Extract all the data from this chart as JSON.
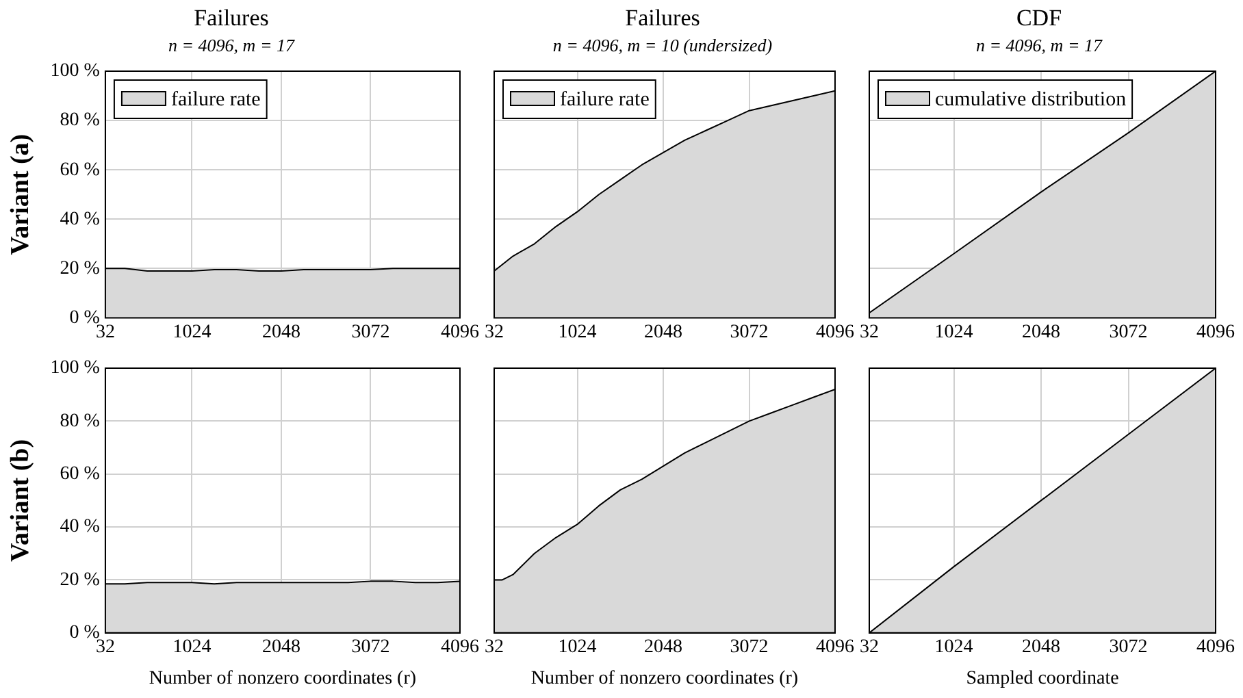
{
  "chart_data": [
    {
      "type": "area",
      "title": "Failures",
      "subtitle": "n = 4096, m = 17",
      "ylabel": "Variant (a)",
      "legend": "top left",
      "grid": true,
      "xlim": [
        32,
        4096
      ],
      "xticks": [
        32,
        1024,
        2048,
        3072,
        4096
      ],
      "ylim": [
        0,
        100
      ],
      "yticks": [
        {
          "value": 0,
          "label": "0 %"
        },
        {
          "value": 20,
          "label": "20 %"
        },
        {
          "value": 40,
          "label": "40 %"
        },
        {
          "value": 60,
          "label": "60 %"
        },
        {
          "value": 80,
          "label": "80 %"
        },
        {
          "value": 100,
          "label": "100 %"
        }
      ],
      "series": [
        {
          "name": "failure rate",
          "color": "#d9d9d9",
          "x": [
            32,
            256,
            512,
            768,
            1024,
            1280,
            1536,
            1792,
            2048,
            2304,
            2560,
            2816,
            3072,
            3328,
            3584,
            3840,
            4096
          ],
          "values": [
            20,
            20,
            19,
            19,
            19,
            19.5,
            19.5,
            19,
            19,
            19.5,
            19.5,
            19.5,
            19.5,
            20,
            20,
            20,
            20
          ]
        }
      ]
    },
    {
      "type": "area",
      "title": "Failures",
      "subtitle": "n = 4096, m = 10 (undersized)",
      "legend": "top left",
      "grid": true,
      "tick_labels": "x",
      "xlim": [
        32,
        4096
      ],
      "xticks": [
        32,
        1024,
        2048,
        3072,
        4096
      ],
      "ylim": [
        0,
        100
      ],
      "yticks": [
        0,
        20,
        40,
        60,
        80,
        100
      ],
      "series": [
        {
          "name": "failure rate",
          "color": "#d9d9d9",
          "x": [
            32,
            256,
            512,
            768,
            1024,
            1280,
            1536,
            1792,
            2048,
            2304,
            2560,
            2816,
            3072,
            3328,
            3584,
            3840,
            4096
          ],
          "values": [
            19,
            25,
            30,
            37,
            43,
            50,
            56,
            62,
            67,
            72,
            76,
            80,
            84,
            86,
            88,
            90,
            92
          ]
        }
      ]
    },
    {
      "type": "area",
      "title": "CDF",
      "subtitle": "n = 4096, m = 17",
      "legend": "top left",
      "grid": true,
      "tick_labels": "x",
      "xlim": [
        32,
        4096
      ],
      "xticks": [
        32,
        1024,
        2048,
        3072,
        4096
      ],
      "ylim": [
        0,
        100
      ],
      "yticks": [
        0,
        20,
        40,
        60,
        80,
        100
      ],
      "series": [
        {
          "name": "cumulative distribution",
          "color": "#d9d9d9",
          "x": [
            32,
            1024,
            2048,
            3072,
            4096
          ],
          "values": [
            2,
            26,
            51,
            75,
            100
          ]
        }
      ]
    },
    {
      "type": "area",
      "ylabel": "Variant (b)",
      "xlabel": "Number of nonzero coordinates (r)",
      "grid": true,
      "xlim": [
        32,
        4096
      ],
      "xticks": [
        32,
        1024,
        2048,
        3072,
        4096
      ],
      "ylim": [
        0,
        100
      ],
      "yticks": [
        {
          "value": 0,
          "label": "0 %"
        },
        {
          "value": 20,
          "label": "20 %"
        },
        {
          "value": 40,
          "label": "40 %"
        },
        {
          "value": 60,
          "label": "60 %"
        },
        {
          "value": 80,
          "label": "80 %"
        },
        {
          "value": 100,
          "label": "100 %"
        }
      ],
      "series": [
        {
          "color": "#d9d9d9",
          "x": [
            32,
            256,
            512,
            768,
            1024,
            1280,
            1536,
            1792,
            2048,
            2304,
            2560,
            2816,
            3072,
            3328,
            3584,
            3840,
            4096
          ],
          "values": [
            18.5,
            18.5,
            19,
            19,
            19,
            18.5,
            19,
            19,
            19,
            19,
            19,
            19,
            19.5,
            19.5,
            19,
            19,
            19.5
          ]
        }
      ]
    },
    {
      "type": "area",
      "xlabel": "Number of nonzero coordinates (r)",
      "grid": true,
      "tick_labels": "x",
      "xlim": [
        32,
        4096
      ],
      "xticks": [
        32,
        1024,
        2048,
        3072,
        4096
      ],
      "ylim": [
        0,
        100
      ],
      "yticks": [
        0,
        20,
        40,
        60,
        80,
        100
      ],
      "series": [
        {
          "color": "#d9d9d9",
          "x": [
            32,
            128,
            256,
            512,
            768,
            1024,
            1280,
            1536,
            1792,
            2048,
            2304,
            2560,
            2816,
            3072,
            3328,
            3584,
            3840,
            4096
          ],
          "values": [
            20,
            20,
            22,
            30,
            36,
            41,
            48,
            54,
            58,
            63,
            68,
            72,
            76,
            80,
            83,
            86,
            89,
            92
          ]
        }
      ]
    },
    {
      "type": "area",
      "xlabel": "Sampled coordinate",
      "grid": true,
      "tick_labels": "x",
      "xlim": [
        32,
        4096
      ],
      "xticks": [
        32,
        1024,
        2048,
        3072,
        4096
      ],
      "ylim": [
        0,
        100
      ],
      "yticks": [
        0,
        20,
        40,
        60,
        80,
        100
      ],
      "series": [
        {
          "color": "#d9d9d9",
          "x": [
            32,
            1024,
            2048,
            3072,
            4096
          ],
          "values": [
            0,
            25,
            50,
            75,
            100
          ]
        }
      ]
    }
  ]
}
